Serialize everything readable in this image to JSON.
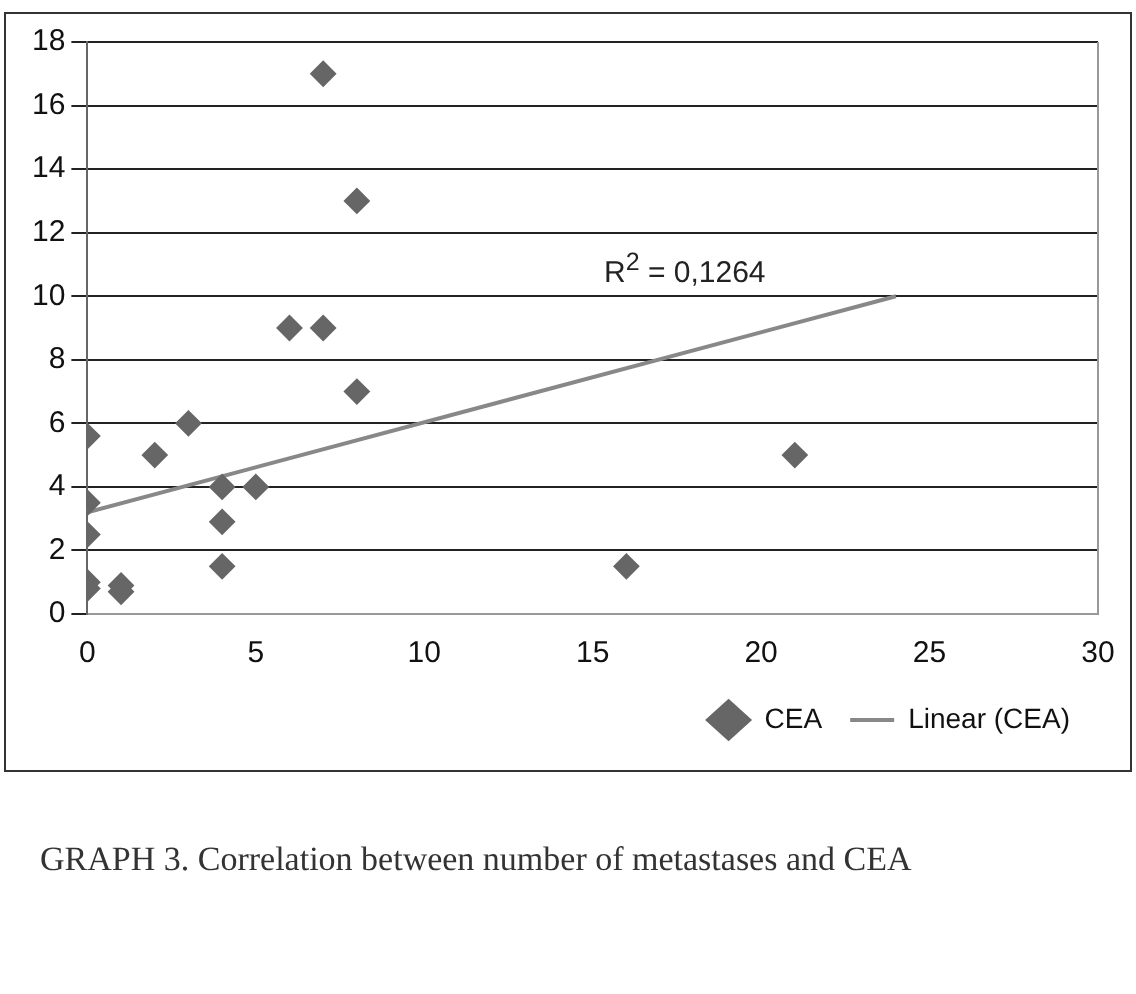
{
  "chart_data": {
    "type": "scatter",
    "xlim": [
      0,
      30
    ],
    "xticks": [
      0,
      5,
      10,
      15,
      20,
      25,
      30
    ],
    "ylim": [
      0,
      18
    ],
    "yticks": [
      0,
      2,
      4,
      6,
      8,
      10,
      12,
      14,
      16,
      18
    ],
    "grid": "y",
    "legend": "bottom right",
    "series": [
      {
        "name": "CEA",
        "type": "scatter",
        "marker": "diamond",
        "color": "#666666",
        "x": [
          0,
          0,
          0,
          0,
          0,
          1,
          1,
          2,
          3,
          4,
          4,
          4,
          5,
          6,
          7,
          7,
          8,
          8,
          16,
          21
        ],
        "values": [
          5.6,
          3.5,
          2.5,
          1,
          0.8,
          0.9,
          0.7,
          5,
          6,
          4,
          2.9,
          1.5,
          4,
          9,
          9,
          17,
          13,
          7,
          1.5,
          5
        ]
      },
      {
        "name": "Linear (CEA)",
        "type": "line",
        "marker": "none",
        "color": "#888888",
        "x": [
          0,
          24
        ],
        "values": [
          3.2,
          10
        ]
      }
    ],
    "annotations": [
      "R$^{2}$ = 0,1264",
      "GRAPH 3.  Correlation between number of metastases and CEA"
    ]
  }
}
